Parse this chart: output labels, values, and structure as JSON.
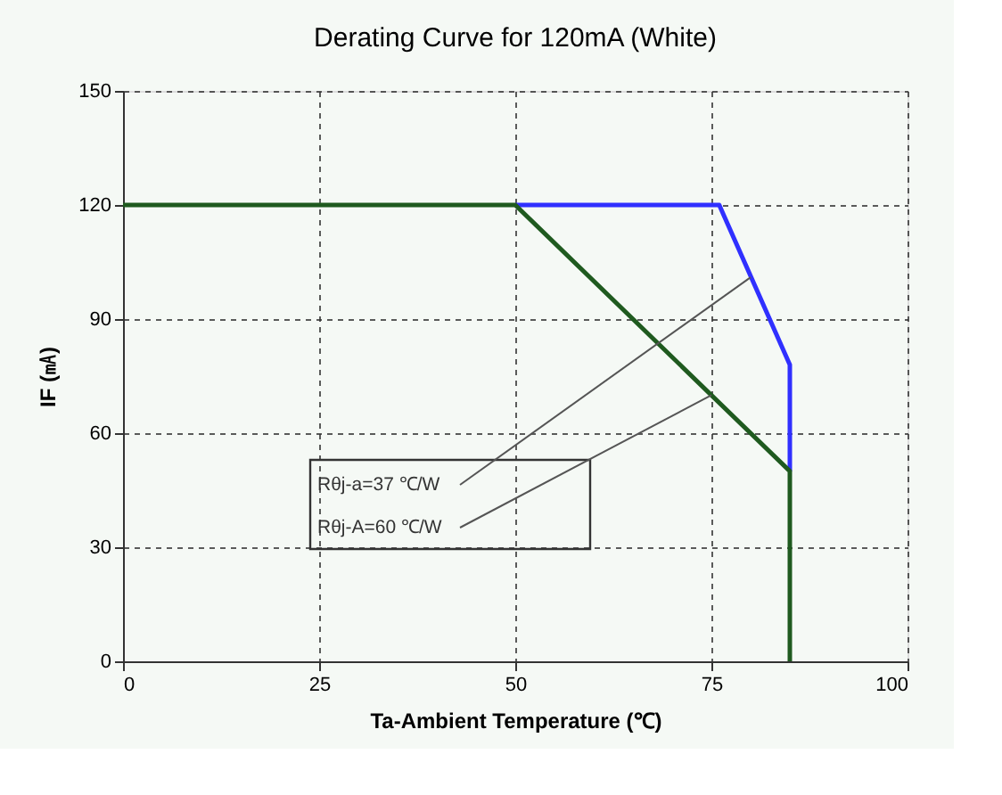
{
  "chart_data": {
    "type": "line",
    "title": "Derating Curve for 120mA (White)",
    "xlabel": "Ta-Ambient Temperature (℃)",
    "ylabel": "IF (㎃)",
    "xlim": [
      0,
      100
    ],
    "xticks": [
      0,
      25,
      50,
      75,
      100
    ],
    "ylim": [
      0,
      150
    ],
    "yticks": [
      0,
      30,
      60,
      90,
      120,
      150
    ],
    "grid": true,
    "line_style": "solid",
    "series": [
      {
        "color": "#3030ff",
        "x": [
          50,
          76,
          85,
          85
        ],
        "values": [
          120,
          120,
          78,
          50
        ]
      },
      {
        "color": "#1f5a1f",
        "x": [
          0,
          50,
          85,
          85
        ],
        "values": [
          120,
          120,
          50,
          0
        ]
      }
    ],
    "annotations": [
      {
        "text": "Rθj-a=37 ℃/W",
        "x": 80,
        "y": 101
      },
      {
        "text": "Rθj-A=60 ℃/W",
        "x": 75,
        "y": 70
      }
    ]
  }
}
